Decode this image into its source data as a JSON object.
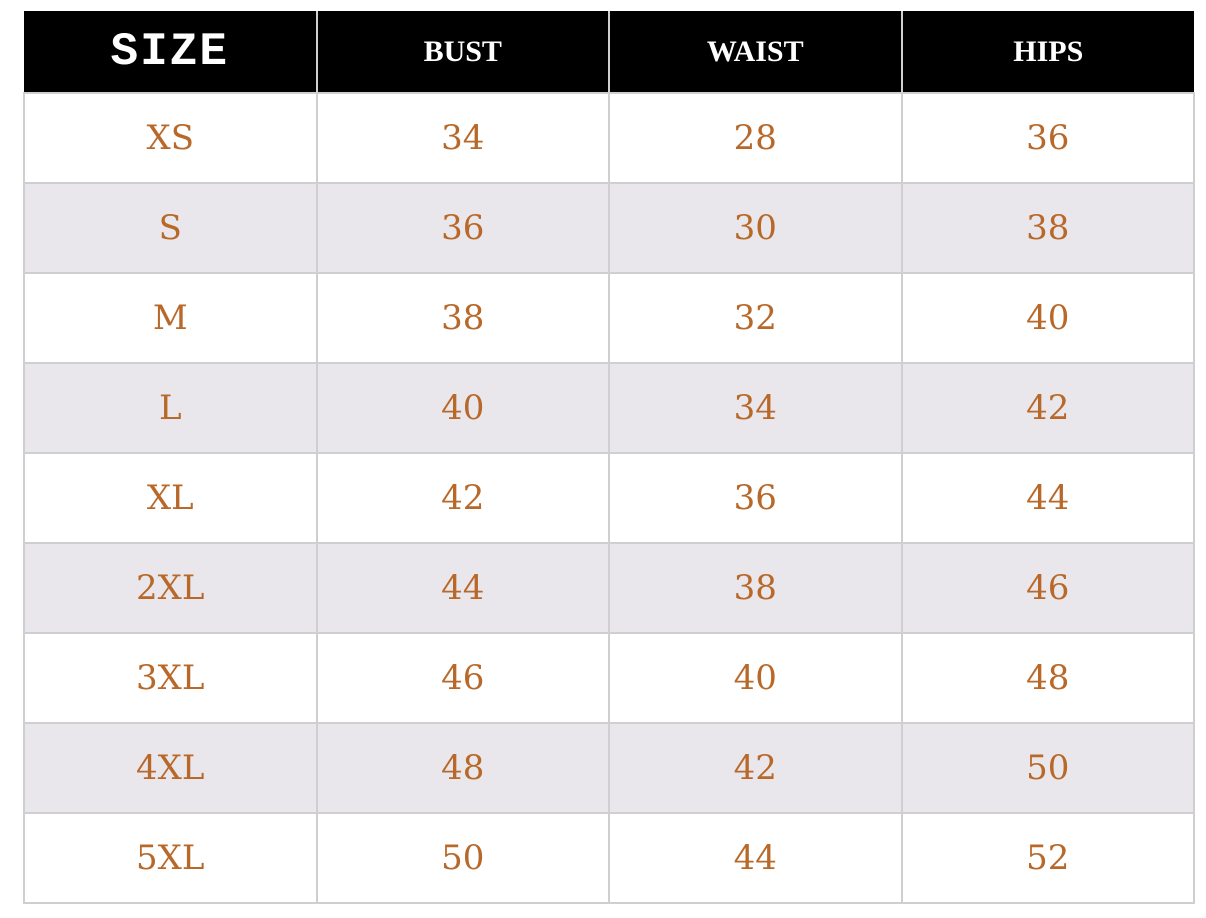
{
  "colors": {
    "accent": "#b8692a",
    "header_bg": "#000000",
    "alt_row": "#e9e7ec"
  },
  "headers": [
    "SIZE",
    "BUST",
    "WAIST",
    "HIPS"
  ],
  "rows": [
    [
      "XS",
      "34",
      "28",
      "36"
    ],
    [
      "S",
      "36",
      "30",
      "38"
    ],
    [
      "M",
      "38",
      "32",
      "40"
    ],
    [
      "L",
      "40",
      "34",
      "42"
    ],
    [
      "XL",
      "42",
      "36",
      "44"
    ],
    [
      "2XL",
      "44",
      "38",
      "46"
    ],
    [
      "3XL",
      "46",
      "40",
      "48"
    ],
    [
      "4XL",
      "48",
      "42",
      "50"
    ],
    [
      "5XL",
      "50",
      "44",
      "52"
    ]
  ]
}
